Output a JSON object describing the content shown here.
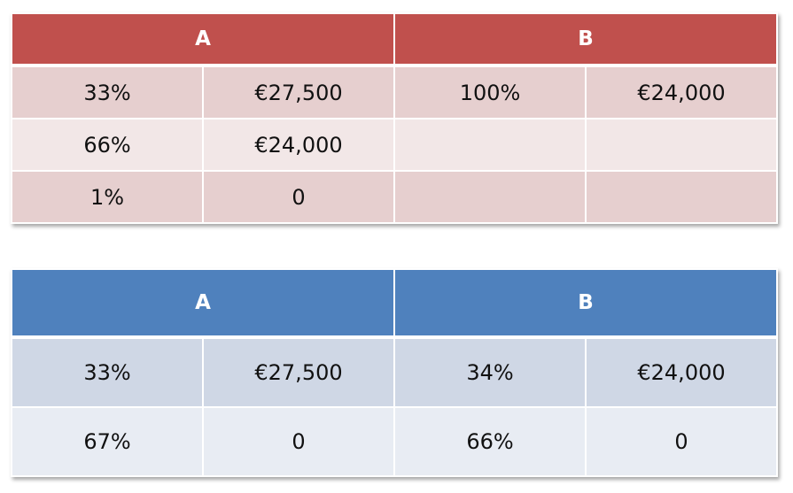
{
  "colors": {
    "table1_header": "#c0504d",
    "table1_band_dark": "#e6cfcf",
    "table1_band_light": "#f2e7e7",
    "table2_header": "#4f81bd",
    "table2_band_dark": "#cfd7e5",
    "table2_band_light": "#e8ecf3"
  },
  "table1": {
    "header_a": "A",
    "header_b": "B",
    "rows": [
      [
        "33%",
        "€27,500",
        "100%",
        "€24,000"
      ],
      [
        "66%",
        "€24,000",
        "",
        ""
      ],
      [
        "1%",
        "0",
        "",
        ""
      ]
    ]
  },
  "table2": {
    "header_a": "A",
    "header_b": "B",
    "rows": [
      [
        "33%",
        "€27,500",
        "34%",
        "€24,000"
      ],
      [
        "67%",
        "0",
        "66%",
        "0"
      ]
    ]
  }
}
